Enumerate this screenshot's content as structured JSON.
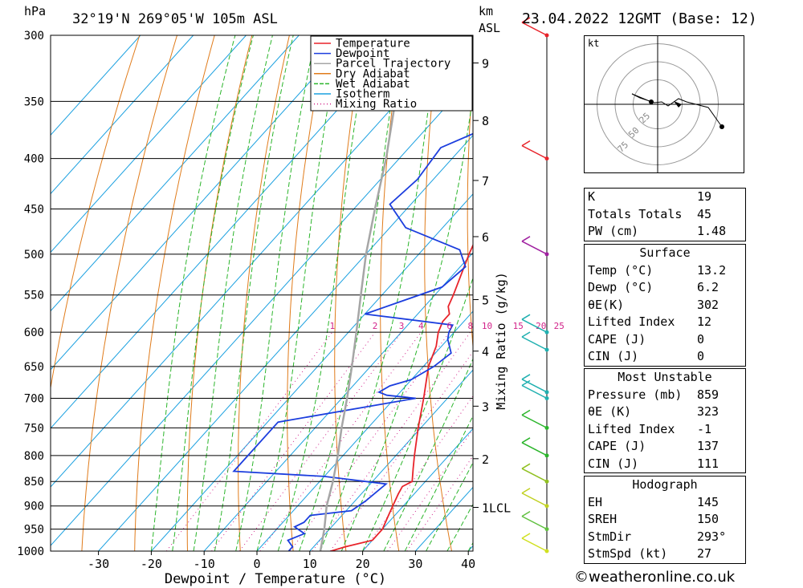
{
  "header": {
    "location": "32°19'N  269°05'W  105m  ASL",
    "datetime": "23.04.2022 12GMT (Base: 12)",
    "hpa_label": "hPa",
    "km_label": "km",
    "asl_label": "ASL"
  },
  "chart_data": {
    "type": "line",
    "title": "",
    "xlabel": "Dewpoint / Temperature (°C)",
    "ylabel": "hPa",
    "right_axis_label": "Mixing Ratio (g/kg)",
    "xlim": [
      -40,
      40
    ],
    "ylim": [
      1000,
      300
    ],
    "pressure_ticks": [
      300,
      350,
      400,
      450,
      500,
      550,
      600,
      650,
      700,
      750,
      800,
      850,
      900,
      950,
      1000
    ],
    "temp_ticks": [
      -30,
      -20,
      -10,
      0,
      10,
      20,
      30,
      40
    ],
    "km_ticks": [
      {
        "label": "9",
        "p": 320
      },
      {
        "label": "8",
        "p": 366
      },
      {
        "label": "7",
        "p": 421
      },
      {
        "label": "6",
        "p": 480
      },
      {
        "label": "5",
        "p": 556
      },
      {
        "label": "4",
        "p": 627
      },
      {
        "label": "3",
        "p": 713
      },
      {
        "label": "2",
        "p": 806
      },
      {
        "label": "1LCL",
        "p": 903
      }
    ],
    "mixing_ratio_labels": [
      "1",
      "2",
      "3",
      "4",
      "6",
      "8",
      "10",
      "15",
      "20",
      "25"
    ],
    "legend": {
      "placement": "top-right",
      "entries": [
        {
          "name": "Temperature",
          "color": "#e8232a"
        },
        {
          "name": "Dewpoint",
          "color": "#1c3ede"
        },
        {
          "name": "Parcel Trajectory",
          "color": "#a6a6a6"
        },
        {
          "name": "Dry Adiabat",
          "color": "#e07b1a"
        },
        {
          "name": "Wet Adiabat",
          "color": "#2bb52b"
        },
        {
          "name": "Isotherm",
          "color": "#1aa0e0"
        },
        {
          "name": "Mixing Ratio",
          "color": "#d2238a"
        }
      ]
    },
    "series": [
      {
        "name": "Temperature",
        "points": [
          [
            1000,
            14.0
          ],
          [
            990,
            16.0
          ],
          [
            975,
            20.0
          ],
          [
            950,
            20.0
          ],
          [
            925,
            19.0
          ],
          [
            900,
            18.0
          ],
          [
            875,
            17.0
          ],
          [
            860,
            16.5
          ],
          [
            850,
            17.5
          ],
          [
            825,
            15.5
          ],
          [
            800,
            13.5
          ],
          [
            750,
            9.5
          ],
          [
            700,
            5.5
          ],
          [
            650,
            1.0
          ],
          [
            620,
            -1.0
          ],
          [
            600,
            -3.0
          ],
          [
            585,
            -4.0
          ],
          [
            575,
            -4.0
          ],
          [
            565,
            -5.5
          ],
          [
            550,
            -6.5
          ],
          [
            500,
            -10.5
          ],
          [
            480,
            -12.0
          ],
          [
            470,
            -12.5
          ],
          [
            450,
            -14.5
          ],
          [
            400,
            -20.0
          ],
          [
            350,
            -27.5
          ],
          [
            330,
            -29.5
          ],
          [
            300,
            -35.0
          ]
        ]
      },
      {
        "name": "Dewpoint",
        "points": [
          [
            1000,
            6.0
          ],
          [
            990,
            6.0
          ],
          [
            975,
            4.0
          ],
          [
            960,
            6.0
          ],
          [
            945,
            3.0
          ],
          [
            935,
            4.0
          ],
          [
            920,
            4.0
          ],
          [
            910,
            11.0
          ],
          [
            890,
            12.0
          ],
          [
            855,
            13.0
          ],
          [
            840,
            0.0
          ],
          [
            830,
            -18.0
          ],
          [
            740,
            -18.0
          ],
          [
            700,
            4.0
          ],
          [
            695,
            -2.0
          ],
          [
            690,
            -4.0
          ],
          [
            680,
            -3.0
          ],
          [
            670,
            0.0
          ],
          [
            650,
            2.0
          ],
          [
            630,
            3.0
          ],
          [
            610,
            0.0
          ],
          [
            600,
            -1.0
          ],
          [
            590,
            -1.5
          ],
          [
            575,
            -20.0
          ],
          [
            540,
            -10.0
          ],
          [
            515,
            -9.0
          ],
          [
            495,
            -13.0
          ],
          [
            470,
            -27.0
          ],
          [
            445,
            -34.0
          ],
          [
            420,
            -33.0
          ],
          [
            390,
            -34.0
          ],
          [
            370,
            -28.0
          ],
          [
            367,
            -22.0
          ],
          [
            363,
            -16.0
          ],
          [
            360,
            -21.0
          ],
          [
            357,
            -25.0
          ],
          [
            355,
            -29.0
          ],
          [
            353,
            -27.0
          ],
          [
            350,
            -29.0
          ],
          [
            348,
            -30.0
          ],
          [
            335,
            -33.0
          ],
          [
            320,
            -35.0
          ],
          [
            300,
            -37.0
          ]
        ]
      },
      {
        "name": "Parcel Trajectory",
        "points": [
          [
            1000,
            12.0
          ],
          [
            950,
            9.0
          ],
          [
            900,
            5.5
          ],
          [
            850,
            2.5
          ],
          [
            800,
            -1.0
          ],
          [
            750,
            -5.0
          ],
          [
            700,
            -9.0
          ],
          [
            650,
            -13.5
          ],
          [
            600,
            -18.5
          ],
          [
            550,
            -24.0
          ],
          [
            500,
            -30.0
          ],
          [
            450,
            -36.0
          ],
          [
            400,
            -42.5
          ],
          [
            350,
            -50.5
          ],
          [
            300,
            -59.0
          ]
        ]
      }
    ]
  },
  "hodograph": {
    "unit_label": "kt",
    "ring_labels": [
      "25",
      "50",
      "75"
    ]
  },
  "indices": {
    "main": [
      {
        "label": "K",
        "value": "19"
      },
      {
        "label": "Totals Totals",
        "value": "45"
      },
      {
        "label": "PW (cm)",
        "value": "1.48"
      }
    ],
    "surface": {
      "title": "Surface",
      "rows": [
        {
          "label": "Temp (°C)",
          "value": "13.2"
        },
        {
          "label": "Dewp (°C)",
          "value": "6.2"
        },
        {
          "label": "θE(K)",
          "value": "302"
        },
        {
          "label": "Lifted Index",
          "value": "12"
        },
        {
          "label": "CAPE (J)",
          "value": "0"
        },
        {
          "label": "CIN (J)",
          "value": "0"
        }
      ]
    },
    "most_unstable": {
      "title": "Most Unstable",
      "rows": [
        {
          "label": "Pressure (mb)",
          "value": "859"
        },
        {
          "label": "θE (K)",
          "value": "323"
        },
        {
          "label": "Lifted Index",
          "value": "-1"
        },
        {
          "label": "CAPE (J)",
          "value": "137"
        },
        {
          "label": "CIN (J)",
          "value": "111"
        }
      ]
    },
    "hodograph_stats": {
      "title": "Hodograph",
      "rows": [
        {
          "label": "EH",
          "value": "145"
        },
        {
          "label": "SREH",
          "value": "150"
        },
        {
          "label": "StmDir",
          "value": "293°"
        },
        {
          "label": "StmSpd (kt)",
          "value": "27"
        }
      ]
    }
  },
  "credit": "©weatheronline.co.uk"
}
